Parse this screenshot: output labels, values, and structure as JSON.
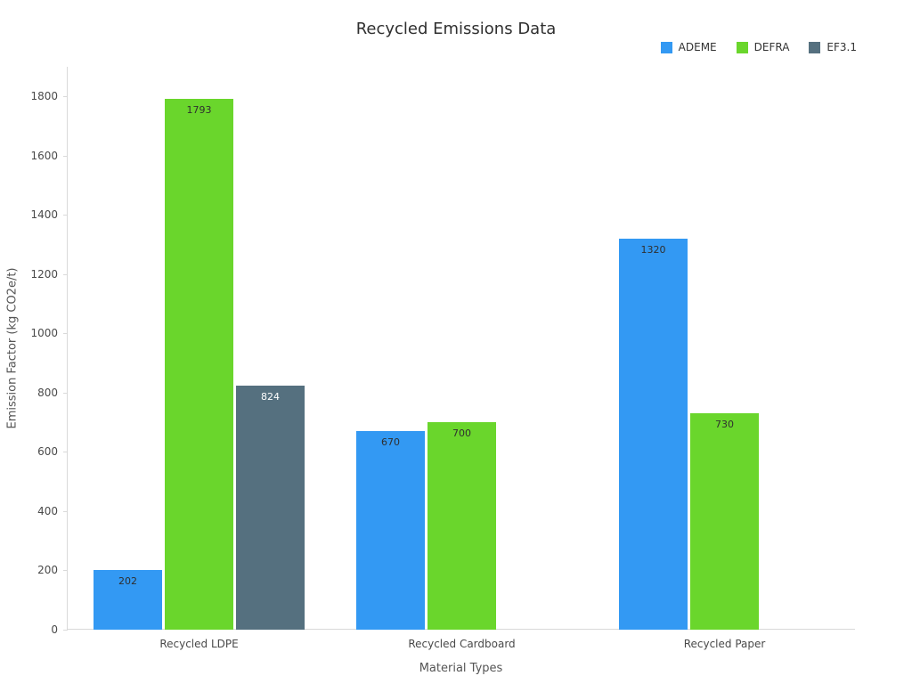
{
  "title": "Recycled Emissions Data",
  "chart_data": {
    "type": "bar",
    "title": "Recycled Emissions Data",
    "xlabel": "Material Types",
    "ylabel": "Emission Factor (kg CO2e/t)",
    "categories": [
      "Recycled LDPE",
      "Recycled Cardboard",
      "Recycled Paper"
    ],
    "series": [
      {
        "name": "ADEME",
        "color": "#3399F3",
        "label_color": "#2F2F2F",
        "values": [
          202,
          670,
          1320
        ]
      },
      {
        "name": "DEFRA",
        "color": "#6AD62C",
        "label_color": "#2F2F2F",
        "values": [
          1793,
          700,
          730
        ]
      },
      {
        "name": "EF3.1",
        "color": "#55707F",
        "label_color": "#FFFFFF",
        "values": [
          824,
          null,
          null
        ]
      }
    ],
    "ylim": [
      0,
      1900
    ],
    "yticks": [
      0,
      200,
      400,
      600,
      800,
      1000,
      1200,
      1400,
      1600,
      1800
    ],
    "grid": false,
    "legend_position": "top-right",
    "bar_values_shown": true
  }
}
